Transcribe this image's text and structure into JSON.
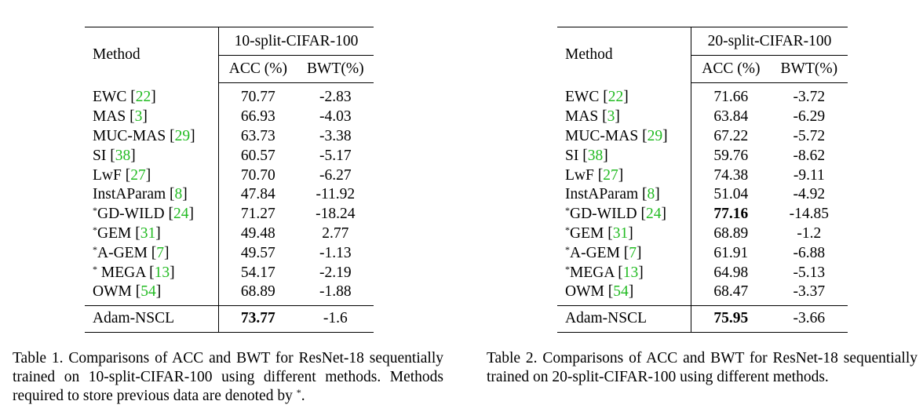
{
  "tables": [
    {
      "method_header": "Method",
      "group_header": "10-split-CIFAR-100",
      "acc_header": "ACC (%)",
      "bwt_header": "BWT(%)",
      "rows": [
        {
          "star": "",
          "name": "EWC ",
          "cite": "22",
          "acc": "70.77",
          "bwt": "-2.83",
          "acc_bold": false
        },
        {
          "star": "",
          "name": "MAS ",
          "cite": "3",
          "acc": "66.93",
          "bwt": "-4.03",
          "acc_bold": false
        },
        {
          "star": "",
          "name": "MUC-MAS ",
          "cite": "29",
          "acc": "63.73",
          "bwt": "-3.38",
          "acc_bold": false
        },
        {
          "star": "",
          "name": "SI ",
          "cite": "38",
          "acc": "60.57",
          "bwt": "-5.17",
          "acc_bold": false
        },
        {
          "star": "",
          "name": "LwF ",
          "cite": "27",
          "acc": "70.70",
          "bwt": "-6.27",
          "acc_bold": false
        },
        {
          "star": "",
          "name": "InstAParam ",
          "cite": "8",
          "acc": "47.84",
          "bwt": "-11.92",
          "acc_bold": false
        },
        {
          "star": "*",
          "name": "GD-WILD ",
          "cite": "24",
          "acc": "71.27",
          "bwt": "-18.24",
          "acc_bold": false
        },
        {
          "star": "*",
          "name": "GEM ",
          "cite": "31",
          "acc": "49.48",
          "bwt": "2.77",
          "acc_bold": false
        },
        {
          "star": "*",
          "name": "A-GEM ",
          "cite": "7",
          "acc": "49.57",
          "bwt": "-1.13",
          "acc_bold": false
        },
        {
          "star": "*",
          "name": " MEGA ",
          "cite": "13",
          "acc": "54.17",
          "bwt": "-2.19",
          "acc_bold": false
        },
        {
          "star": "",
          "name": "OWM ",
          "cite": "54",
          "acc": "68.89",
          "bwt": "-1.88",
          "acc_bold": false
        }
      ],
      "final": {
        "name": "Adam-NSCL",
        "acc": "73.77",
        "bwt": "-1.6"
      },
      "caption": "Table 1. Comparisons of ACC and BWT for ResNet-18 sequentially trained on 10-split-CIFAR-100 using different methods. Methods required to store previous data are denoted by ",
      "caption_star": "*",
      "caption_end": "."
    },
    {
      "method_header": "Method",
      "group_header": "20-split-CIFAR-100",
      "acc_header": "ACC (%)",
      "bwt_header": "BWT(%)",
      "rows": [
        {
          "star": "",
          "name": "EWC ",
          "cite": "22",
          "acc": "71.66",
          "bwt": "-3.72",
          "acc_bold": false
        },
        {
          "star": "",
          "name": "MAS ",
          "cite": "3",
          "acc": "63.84",
          "bwt": "-6.29",
          "acc_bold": false
        },
        {
          "star": "",
          "name": "MUC-MAS ",
          "cite": "29",
          "acc": "67.22",
          "bwt": "-5.72",
          "acc_bold": false
        },
        {
          "star": "",
          "name": "SI ",
          "cite": "38",
          "acc": "59.76",
          "bwt": "-8.62",
          "acc_bold": false
        },
        {
          "star": "",
          "name": "LwF ",
          "cite": "27",
          "acc": "74.38",
          "bwt": "-9.11",
          "acc_bold": false
        },
        {
          "star": "",
          "name": "InstAParam ",
          "cite": "8",
          "acc": "51.04",
          "bwt": "-4.92",
          "acc_bold": false
        },
        {
          "star": "*",
          "name": "GD-WILD ",
          "cite": "24",
          "acc": "77.16",
          "bwt": "-14.85",
          "acc_bold": true
        },
        {
          "star": "*",
          "name": "GEM ",
          "cite": "31",
          "acc": "68.89",
          "bwt": "-1.2",
          "acc_bold": false
        },
        {
          "star": "*",
          "name": "A-GEM ",
          "cite": "7",
          "acc": "61.91",
          "bwt": "-6.88",
          "acc_bold": false
        },
        {
          "star": "*",
          "name": "MEGA ",
          "cite": "13",
          "acc": "64.98",
          "bwt": "-5.13",
          "acc_bold": false
        },
        {
          "star": "",
          "name": "OWM ",
          "cite": "54",
          "acc": "68.47",
          "bwt": "-3.37",
          "acc_bold": false
        }
      ],
      "final": {
        "name": "Adam-NSCL",
        "acc": "75.95",
        "bwt": "-3.66"
      },
      "caption": "Table 2. Comparisons of ACC and BWT for ResNet-18 sequentially trained on 20-split-CIFAR-100 using different methods.",
      "caption_star": "",
      "caption_end": ""
    }
  ]
}
